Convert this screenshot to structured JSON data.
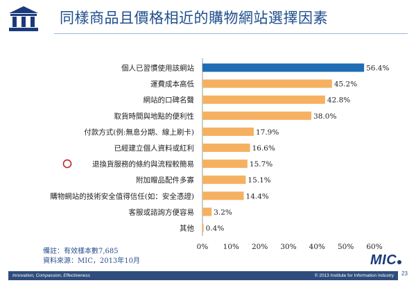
{
  "slide": {
    "title": "同樣商品且價格相近的購物網站選擇因素",
    "note_line1": "備註：有效樣本數7,685",
    "note_line2": "資料來源：MIC，2013年10月",
    "brand": "MIC",
    "page_number": "23",
    "footer_slogan": "Innovation, Compassion, Effectiveness",
    "footer_copyright": "© 2013 Institute for Information Industry"
  },
  "colors": {
    "highlight_bar": "#1f6db4",
    "bar": "#f5b161",
    "marker": "#c0232b",
    "brand_blue": "#1a3a7a",
    "footer": "#2f4d7c"
  },
  "chart_data": {
    "type": "bar",
    "orientation": "horizontal",
    "categories": [
      "個人已習慣使用該網站",
      "運費成本高低",
      "網站的口碑名聲",
      "取貨時間與地點的便利性",
      "付款方式(例:無息分期、線上刷卡)",
      "已經建立個人資料或紅利",
      "退換貨服務的條約與流程較簡易",
      "附加贈品配件多寡",
      "購物網站的技術安全值得信任(如：安全憑證)",
      "客服或諮詢方便容易",
      "其他"
    ],
    "values": [
      56.4,
      45.2,
      42.8,
      38.0,
      17.9,
      16.6,
      15.7,
      15.1,
      14.4,
      3.2,
      0.4
    ],
    "value_labels": [
      "56.4%",
      "45.2%",
      "42.8%",
      "38.0%",
      "17.9%",
      "16.6%",
      "15.7%",
      "15.1%",
      "14.4%",
      "3.2%",
      "0.4%"
    ],
    "highlight_index": 0,
    "marked_index": 6,
    "xlim": [
      0,
      60
    ],
    "xticks": [
      "0%",
      "10%",
      "20%",
      "30%",
      "40%",
      "50%",
      "60%"
    ],
    "grid": false,
    "legend": "none"
  }
}
